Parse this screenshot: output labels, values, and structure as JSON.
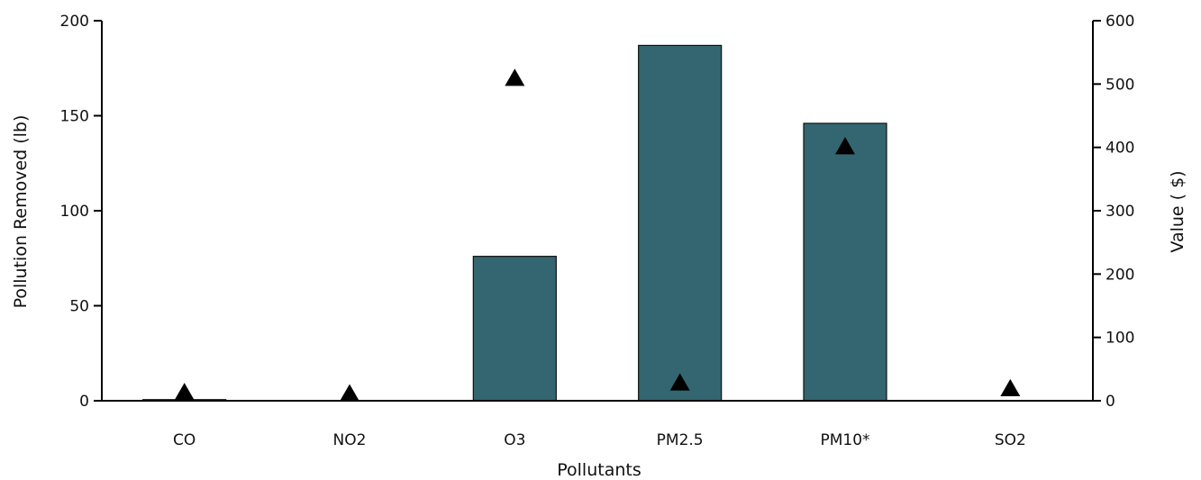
{
  "chart_data": {
    "type": "bar",
    "title": "",
    "categories": [
      "CO",
      "NO2",
      "O3",
      "PM2.5",
      "PM10*",
      "SO2"
    ],
    "xlabel": "Pollutants",
    "series": [
      {
        "kind": "bar",
        "axis": "left",
        "values": [
          0.6,
          0,
          76,
          187,
          146,
          0
        ]
      },
      {
        "kind": "scatter",
        "marker": "triangle",
        "axis": "right",
        "values": [
          12,
          10,
          508,
          27,
          400,
          18
        ]
      }
    ],
    "y_left": {
      "label": "Pollution Removed (lb)",
      "range": [
        0,
        200
      ],
      "ticks": [
        0,
        50,
        100,
        150,
        200
      ]
    },
    "y_right": {
      "label": "Value ( $)",
      "range": [
        0,
        600
      ],
      "ticks": [
        0,
        100,
        200,
        300,
        400,
        500,
        600
      ]
    },
    "grid": false,
    "legend": "none",
    "colors": {
      "bar": "#336670",
      "marker": "#000000"
    }
  }
}
